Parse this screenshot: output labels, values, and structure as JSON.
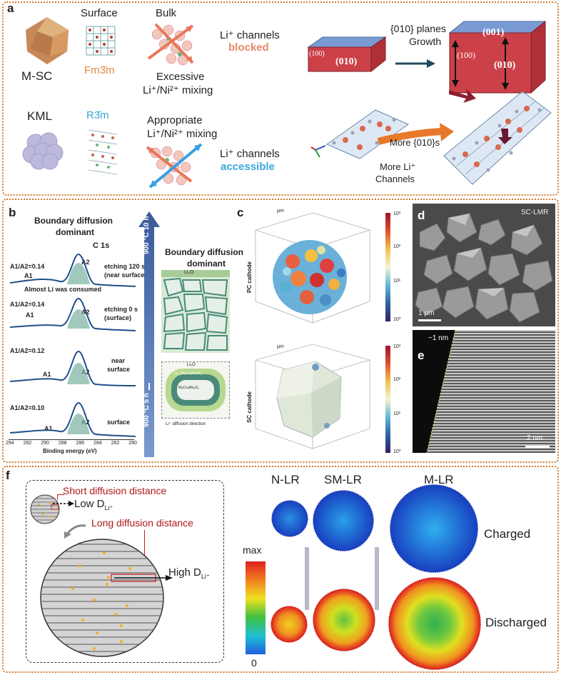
{
  "panel_a": {
    "label": "a",
    "row1_name": "M-SC",
    "row1_surface": "Surface",
    "row1_phase": "Fm3̄m",
    "row1_bulk": "Bulk",
    "row1_mixing": "Excessive",
    "row1_mixing2": "Li⁺/Ni²⁺ mixing",
    "row1_channels": "Li⁺ channels",
    "row1_status": "blocked",
    "row2_name": "KML",
    "row2_phase": "R3̄m",
    "row2_mixing": "Appropriate",
    "row2_mixing2": "Li⁺/Ni²⁺ mixing",
    "row2_channels": "Li⁺ channels",
    "row2_status": "accessible",
    "growth_top": "{010} planes",
    "growth_bottom": "Growth",
    "face_001": "(001)",
    "face_010": "(010)",
    "face_100": "(100)",
    "more010": "More {010}s",
    "more_li": "More Li⁺",
    "channels": "Channels"
  },
  "panel_b": {
    "label": "b",
    "title": "Boundary diffusion",
    "title2": "dominant",
    "c1s": "C 1s",
    "spectra": [
      {
        "ratio": "A1/A2=0.14",
        "cond": "etching 120 s",
        "cond2": "(near surface)"
      },
      {
        "ratio": "A1/A2=0.14",
        "cond": "etching 0 s",
        "cond2": "(surface)"
      },
      {
        "ratio": "A1/A2=0.12",
        "cond": "near",
        "cond2": "surface"
      },
      {
        "ratio": "A1/A2=0.10",
        "cond": "surface",
        "cond2": ""
      }
    ],
    "consumed": "Almost Li was consumed",
    "peak_a1": "A1",
    "peak_a2": "A2",
    "xlabel": "Binding energy (eV)",
    "xticks": [
      "294",
      "292",
      "290",
      "288",
      "286",
      "284",
      "282",
      "280"
    ],
    "arrow_top": "900 °C 10 h",
    "arrow_bottom": "900 °C 5 h",
    "right_title": "Boundary diffusion",
    "right_title2": "dominant",
    "li2o": "Li₂O",
    "shell": "Li₁₊ₓNiᵧCoᵧMnᵧO₂",
    "core": "NiₓCoᵧMnᵧOᵧ",
    "diffusion_dir": "Li⁺ diffusion direction"
  },
  "panel_c": {
    "label": "c",
    "top_axis_label": "PC cathode",
    "bottom_axis_label": "SC cathode",
    "unit": "μm",
    "top_scale": [
      "10³",
      "10²",
      "10¹",
      "10⁰"
    ],
    "bottom_scale": [
      "10³",
      "10²",
      "10¹",
      "10⁰"
    ],
    "top_ticks": [
      "-2",
      "-1",
      "0",
      "1",
      "2"
    ],
    "bottom_ticks": [
      "-0.2",
      "0",
      "0.2",
      "0.4"
    ]
  },
  "panel_d": {
    "label": "d",
    "tag": "SC-LMR",
    "scale": "1 μm"
  },
  "panel_e": {
    "label": "e",
    "note": "~1 nm",
    "scale": "2 nm"
  },
  "panel_f": {
    "label": "f",
    "short": "Short diffusion distance",
    "low": "Low D",
    "low_sub": "Li⁺",
    "long": "Long diffusion distance",
    "high": "High D",
    "high_sub": "Li⁺",
    "cols": [
      "N-LR",
      "SM-LR",
      "M-LR"
    ],
    "scale_max": "max",
    "scale_min": "0",
    "row_charged": "Charged",
    "row_discharged": "Discharged"
  }
}
